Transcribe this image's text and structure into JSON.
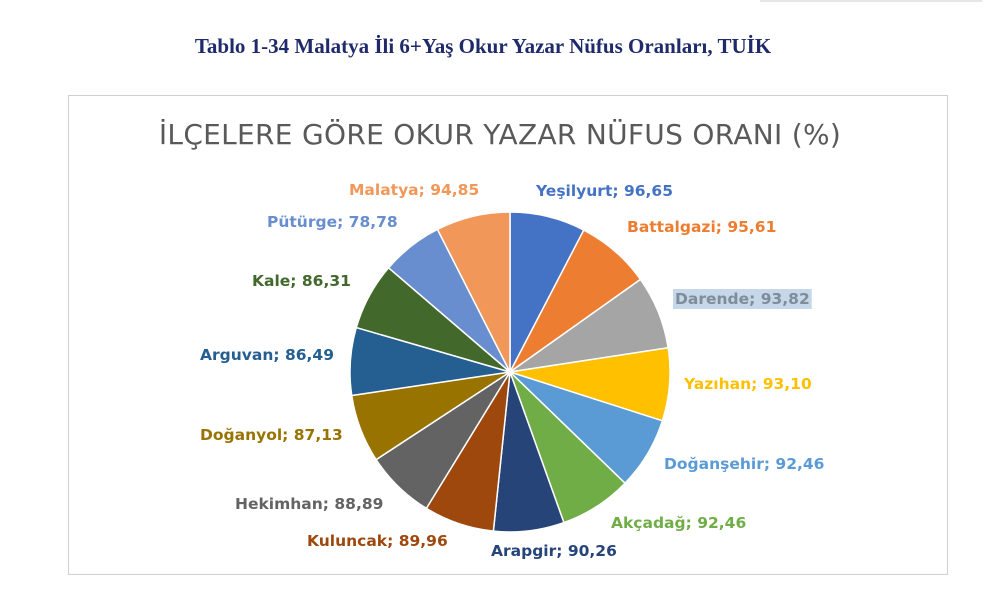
{
  "caption": "Tablo 1-34 Malatya İli 6+Yaş Okur Yazar Nüfus Oranları, TUİK",
  "chart_data": {
    "type": "pie",
    "title": "İLÇELERE GÖRE OKUR YAZAR NÜFUS ORANI (%)",
    "label_separator": "; ",
    "categories": [
      "Yeşilyurt",
      "Battalgazi",
      "Darende",
      "Yazıhan",
      "Doğanşehir",
      "Akçadağ",
      "Arapgir",
      "Kuluncak",
      "Hekimhan",
      "Doğanyol",
      "Arguvan",
      "Kale",
      "Pütürge",
      "Malatya"
    ],
    "values": [
      96.65,
      95.61,
      93.82,
      93.1,
      92.46,
      92.46,
      90.26,
      89.96,
      88.89,
      87.13,
      86.49,
      86.31,
      78.78,
      94.85
    ],
    "value_labels": [
      "96,65",
      "95,61",
      "93,82",
      "93,10",
      "92,46",
      "92,46",
      "90,26",
      "89,96",
      "88,89",
      "87,13",
      "86,49",
      "86,31",
      "78,78",
      "94,85"
    ],
    "colors": [
      "#4472C4",
      "#ED7D31",
      "#A5A5A5",
      "#FFC000",
      "#5B9BD5",
      "#70AD47",
      "#264478",
      "#9E480E",
      "#636363",
      "#997300",
      "#255E91",
      "#43682B",
      "#698ED0",
      "#F1975A"
    ],
    "label_colors": [
      "#4472C4",
      "#ED7D31",
      "#7F8C99",
      "#FFC000",
      "#5B9BD5",
      "#70AD47",
      "#264478",
      "#9E480E",
      "#636363",
      "#997300",
      "#255E91",
      "#43682B",
      "#698ED0",
      "#F1975A"
    ],
    "highlighted_label": "Darende",
    "highlight_color": "#C5D7E8",
    "legend": "none"
  }
}
